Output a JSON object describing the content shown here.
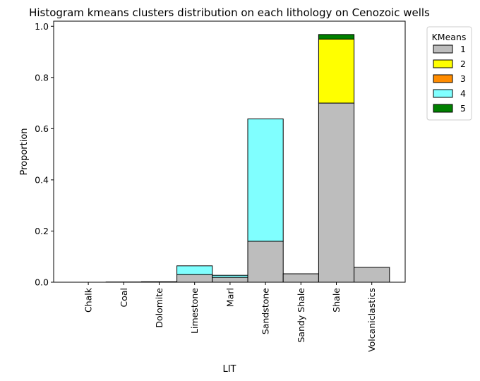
{
  "chart_data": {
    "type": "bar",
    "stacked": true,
    "title": "Histogram kmeans clusters distribution on each lithology on Cenozoic wells",
    "xlabel": "LIT",
    "ylabel": "Proportion",
    "ylim": [
      0,
      1.02
    ],
    "yticks": [
      0.0,
      0.2,
      0.4,
      0.6,
      0.8,
      1.0
    ],
    "ytick_labels": [
      "0.0",
      "0.2",
      "0.4",
      "0.6",
      "0.8",
      "1.0"
    ],
    "grid": false,
    "legend": {
      "title": "KMeans",
      "placement": "outside-top-right"
    },
    "categories": [
      "Chalk",
      "Coal",
      "Dolomite",
      "Limestone",
      "Marl",
      "Sandstone",
      "Sandy Shale",
      "Shale",
      "Volcaniclastics"
    ],
    "series": [
      {
        "name": "1",
        "color": "#bdbdbd",
        "values": [
          0.0,
          0.001,
          0.002,
          0.03,
          0.019,
          0.16,
          0.033,
          0.7,
          0.058
        ]
      },
      {
        "name": "2",
        "color": "#ffff00",
        "values": [
          0.0,
          0.0,
          0.0,
          0.0,
          0.0,
          0.0,
          0.0,
          0.25,
          0.0
        ]
      },
      {
        "name": "3",
        "color": "#ff8c00",
        "values": [
          0.0,
          0.0,
          0.0,
          0.0,
          0.0,
          0.0,
          0.0,
          0.0,
          0.0
        ]
      },
      {
        "name": "4",
        "color": "#80ffff",
        "values": [
          0.0,
          0.0,
          0.0,
          0.034,
          0.008,
          0.478,
          0.0,
          0.0,
          0.0
        ]
      },
      {
        "name": "5",
        "color": "#008000",
        "values": [
          0.0,
          0.0,
          0.0,
          0.0,
          0.0,
          0.0,
          0.0,
          0.018,
          0.0
        ]
      }
    ]
  }
}
